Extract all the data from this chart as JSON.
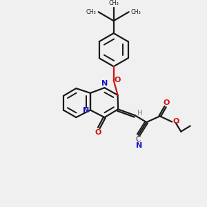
{
  "bg_color": "#f0f0f0",
  "bond_color": "#1a1a1a",
  "N_color": "#1414cc",
  "O_color": "#cc1414",
  "H_color": "#6a8a6a",
  "lw": 1.6,
  "figsize": [
    3.0,
    3.0
  ],
  "dpi": 100,
  "xlim": [
    0,
    10
  ],
  "ylim": [
    0,
    10
  ]
}
